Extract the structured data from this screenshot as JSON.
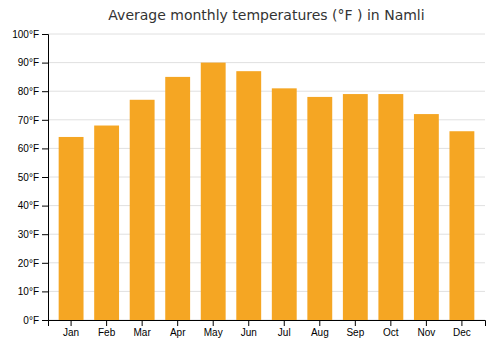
{
  "chart_data": {
    "type": "bar",
    "title": "Average monthly temperatures (°F ) in Namli",
    "categories": [
      "Jan",
      "Feb",
      "Mar",
      "Apr",
      "May",
      "Jun",
      "Jul",
      "Aug",
      "Sep",
      "Oct",
      "Nov",
      "Dec"
    ],
    "values": [
      64,
      68,
      77,
      85,
      90,
      87,
      81,
      78,
      79,
      79,
      72,
      66
    ],
    "color": "#F5A623",
    "ylim": [
      0,
      100
    ],
    "yticks": [
      {
        "value": 0,
        "label": "0°F"
      },
      {
        "value": 10,
        "label": "10°F"
      },
      {
        "value": 20,
        "label": "20°F"
      },
      {
        "value": 30,
        "label": "30°F"
      },
      {
        "value": 40,
        "label": "40°F"
      },
      {
        "value": 50,
        "label": "50°F"
      },
      {
        "value": 60,
        "label": "60°F"
      },
      {
        "value": 70,
        "label": "70°F"
      },
      {
        "value": 80,
        "label": "80°F"
      },
      {
        "value": 90,
        "label": "90°F"
      },
      {
        "value": 100,
        "label": "100°F"
      }
    ],
    "grid": true
  }
}
